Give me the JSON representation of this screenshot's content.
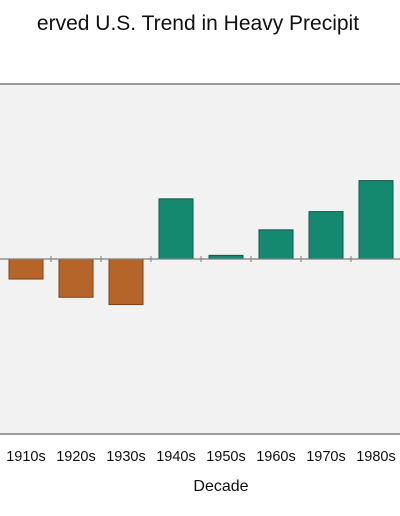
{
  "chart_data": {
    "type": "bar",
    "title": "erved U.S. Trend in Heavy Precipit",
    "xlabel": "Decade",
    "ylabel": "",
    "categories": [
      "1910s",
      "1920s",
      "1930s",
      "1940s",
      "1950s",
      "1960s",
      "1970s",
      "1980s"
    ],
    "values": [
      -5.5,
      -10.5,
      -12.5,
      16.5,
      1,
      8,
      13,
      21.5
    ],
    "ylim": [
      -48,
      48
    ],
    "grid": false,
    "legend": "none",
    "colors": {
      "negative_fill": "#b5652a",
      "negative_stroke": "#7a4318",
      "positive_fill": "#14896f",
      "positive_stroke": "#0b5a48",
      "plot_background": "#f2f2f2",
      "frame": "#9a9a9a",
      "zero_line": "#7f7f7f"
    }
  }
}
